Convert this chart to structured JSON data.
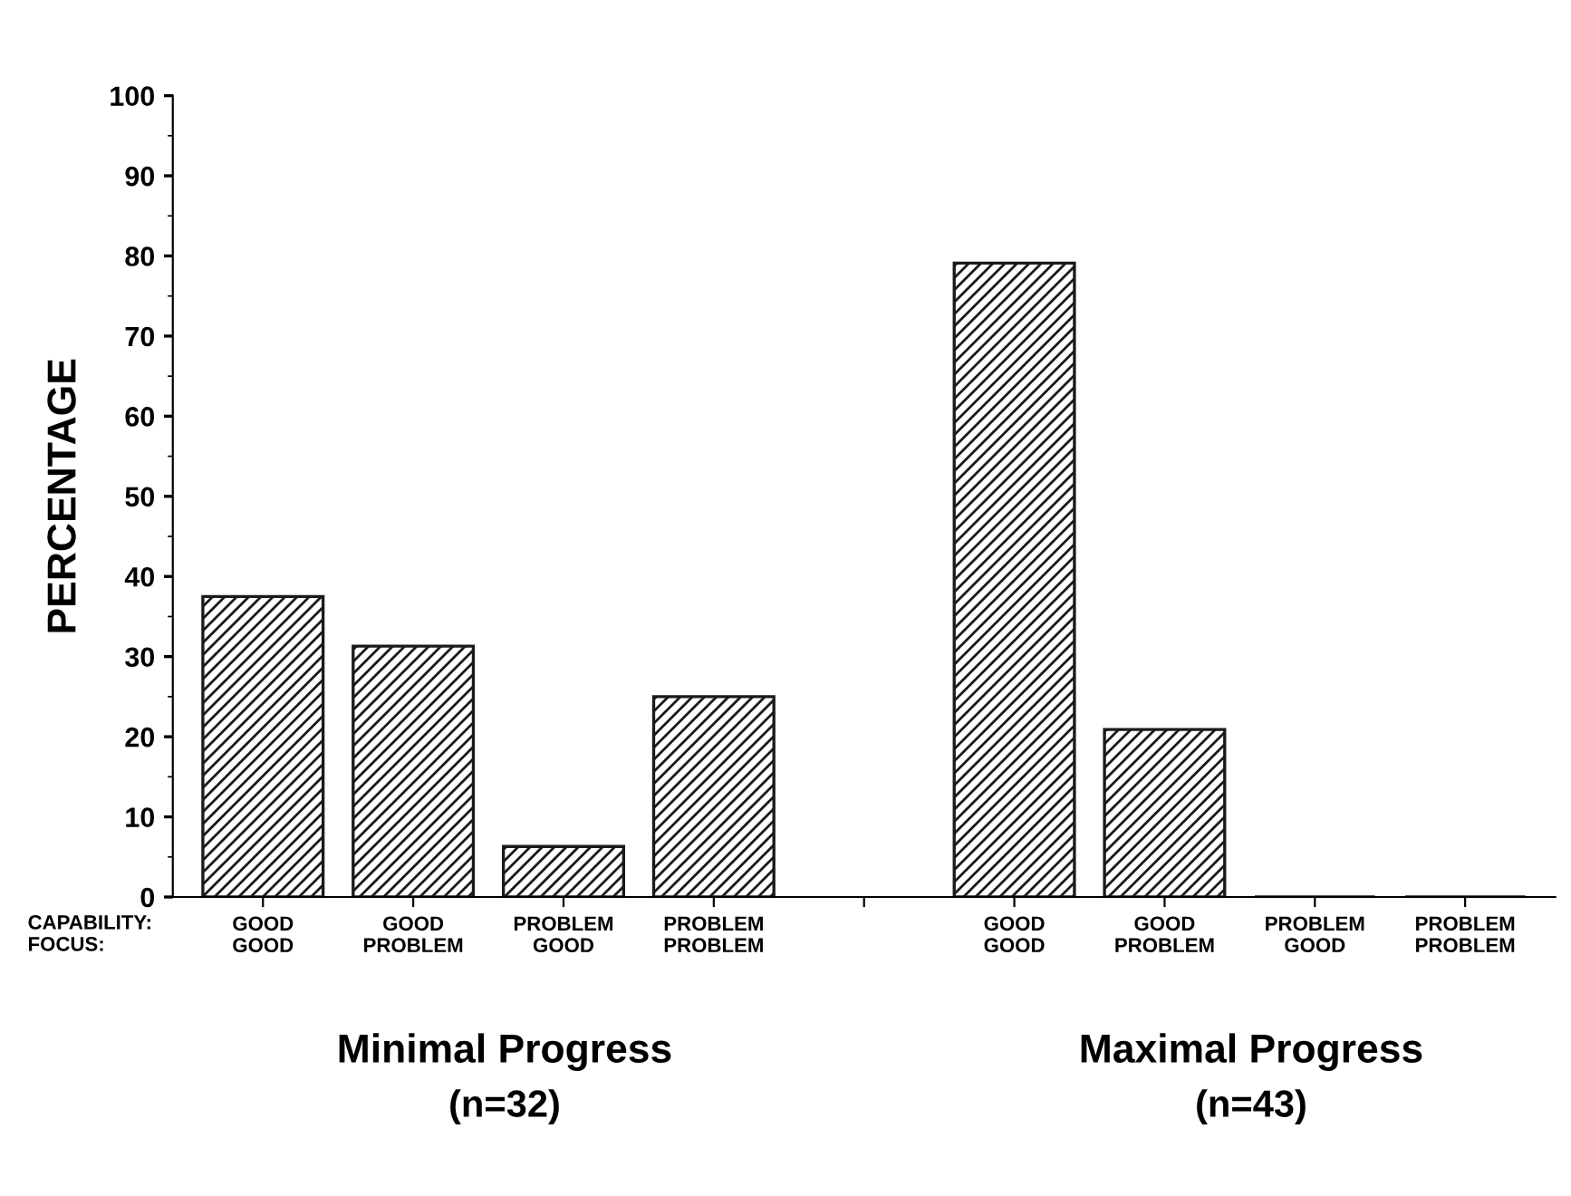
{
  "chart_data": {
    "type": "bar",
    "ylabel": "PERCENTAGE",
    "categories": [
      "GOOD\nGOOD",
      "GOOD\nPROBLEM",
      "PROBLEM\nGOOD",
      "PROBLEM\nPROBLEM",
      null,
      "GOOD\nGOOD",
      "GOOD\nPROBLEM",
      "PROBLEM\nGOOD",
      "PROBLEM\nPROBLEM"
    ],
    "values": [
      37.5,
      31.3,
      6.3,
      25,
      null,
      79.1,
      20.9,
      0,
      0
    ],
    "color": "#1a1a1a",
    "ylim": [
      0,
      100
    ],
    "yticks": [
      0,
      10,
      20,
      30,
      40,
      50,
      60,
      70,
      80,
      90,
      100
    ],
    "grid": false,
    "annotations": [
      "CAPABILITY:\nFOCUS:",
      "Minimal Progress",
      "(n=32)",
      "Maximal Progress",
      "(n=43)"
    ]
  }
}
